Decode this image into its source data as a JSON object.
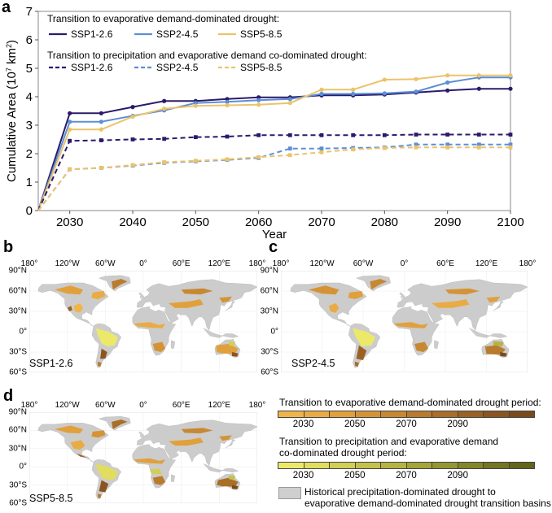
{
  "panels": {
    "a": "a",
    "b": "b",
    "c": "c",
    "d": "d"
  },
  "chart_data": {
    "type": "line",
    "xlabel": "Year",
    "ylabel": "Cumulative Area (10",
    "ylabel_exp": "7",
    "ylabel_unit": " km",
    "ylabel_unit_exp": "2",
    "ylabel_close": ")",
    "xlim": [
      2025,
      2100
    ],
    "ylim": [
      0,
      7
    ],
    "x_ticks": [
      2030,
      2040,
      2050,
      2060,
      2070,
      2080,
      2090,
      2100
    ],
    "y_ticks": [
      0,
      1,
      2,
      3,
      4,
      5,
      6,
      7
    ],
    "x": [
      2025,
      2030,
      2035,
      2040,
      2045,
      2050,
      2055,
      2060,
      2065,
      2070,
      2075,
      2080,
      2085,
      2090,
      2095,
      2100
    ],
    "legend_group1_title": "Transition to evaporative demand-dominated drought:",
    "legend_group2_title": "Transition to precipitation and evaporative demand co-dominated drought:",
    "series": [
      {
        "name": "SSP1-2.6",
        "group": 1,
        "color": "#2b1a6b",
        "dash": "solid",
        "values": [
          0,
          3.42,
          3.42,
          3.64,
          3.85,
          3.85,
          3.92,
          3.98,
          3.98,
          4.05,
          4.05,
          4.08,
          4.15,
          4.22,
          4.28,
          4.28
        ]
      },
      {
        "name": "SSP2-4.5",
        "group": 1,
        "color": "#5b8fd6",
        "dash": "solid",
        "values": [
          0,
          3.12,
          3.12,
          3.33,
          3.52,
          3.78,
          3.82,
          3.88,
          3.92,
          4.1,
          4.1,
          4.12,
          4.18,
          4.5,
          4.68,
          4.68
        ]
      },
      {
        "name": "SSP5-8.5",
        "group": 1,
        "color": "#ecc36a",
        "dash": "solid",
        "values": [
          0,
          2.85,
          2.85,
          3.3,
          3.58,
          3.68,
          3.7,
          3.72,
          3.78,
          4.25,
          4.25,
          4.6,
          4.62,
          4.75,
          4.75,
          4.75
        ]
      },
      {
        "name": "SSP1-2.6",
        "group": 2,
        "color": "#2b1a6b",
        "dash": "dashed",
        "values": [
          0,
          2.45,
          2.47,
          2.5,
          2.52,
          2.58,
          2.6,
          2.65,
          2.65,
          2.65,
          2.65,
          2.65,
          2.67,
          2.67,
          2.67,
          2.67
        ]
      },
      {
        "name": "SSP2-4.5",
        "group": 2,
        "color": "#5b8fd6",
        "dash": "dashed",
        "values": [
          0,
          1.45,
          1.5,
          1.58,
          1.68,
          1.73,
          1.78,
          1.85,
          2.18,
          2.18,
          2.2,
          2.22,
          2.32,
          2.32,
          2.32,
          2.32
        ]
      },
      {
        "name": "SSP5-8.5",
        "group": 2,
        "color": "#ecc36a",
        "dash": "dashed",
        "values": [
          0,
          1.45,
          1.5,
          1.6,
          1.7,
          1.75,
          1.8,
          1.88,
          1.95,
          2.05,
          2.15,
          2.2,
          2.22,
          2.22,
          2.22,
          2.22
        ]
      }
    ]
  },
  "maps": {
    "lon_ticks": [
      "180°",
      "120°W",
      "60°W",
      "0°",
      "60°E",
      "120°E",
      "180°"
    ],
    "lat_ticks": [
      "90°N",
      "60°N",
      "30°N",
      "0°",
      "30°S",
      "60°S"
    ],
    "scenario_b": "SSP1-2.6",
    "scenario_c": "SSP2-4.5",
    "scenario_d": "SSP5-8.5",
    "land_color": "#cccccc"
  },
  "map_legend": {
    "title1": "Transition to evaporative demand-dominated drought period:",
    "title2_line1": "Transition to precipitation and evaporative demand",
    "title2_line2": "co-dominated drought period:",
    "ticks": [
      "2030",
      "2050",
      "2070",
      "2090"
    ],
    "colors_evap": [
      "#f0b54a",
      "#e9ab43",
      "#e0a03c",
      "#d49436",
      "#c78832",
      "#b97b2d",
      "#aa6e28",
      "#9a6124",
      "#8a551f",
      "#7a4a1b"
    ],
    "colors_coda": [
      "#ece96a",
      "#e0dd5f",
      "#d2cf55",
      "#c4c24c",
      "#b5b443",
      "#a5a53a",
      "#959632",
      "#84862a",
      "#737523",
      "#63651c"
    ],
    "hist_line1": "Historical precipitation-dominated drought to",
    "hist_line2": "evaporative demand-dominated drought transition basins"
  }
}
